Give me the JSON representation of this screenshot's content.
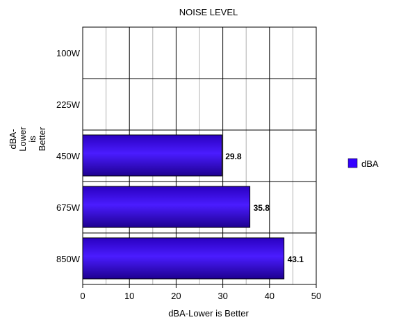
{
  "chart_data": {
    "type": "bar",
    "orientation": "horizontal",
    "title": "NOISE LEVEL",
    "xlabel": "dBA-Lower is Better",
    "ylabel_lines": [
      "dBA-",
      "Lower",
      "is",
      "Better"
    ],
    "categories": [
      "100W",
      "225W",
      "450W",
      "675W",
      "850W"
    ],
    "series": [
      {
        "name": "dBA",
        "values": [
          null,
          null,
          29.8,
          35.8,
          43.1
        ],
        "color": "#3300ff"
      }
    ],
    "data_labels": [
      "",
      "",
      "29.8",
      "35.8",
      "43.1"
    ],
    "xlim": [
      0,
      50
    ],
    "x_ticks": [
      "0",
      "10",
      "20",
      "30",
      "40",
      "50"
    ],
    "minor_gridlines_every": 5,
    "grid": true,
    "legend": "right"
  }
}
